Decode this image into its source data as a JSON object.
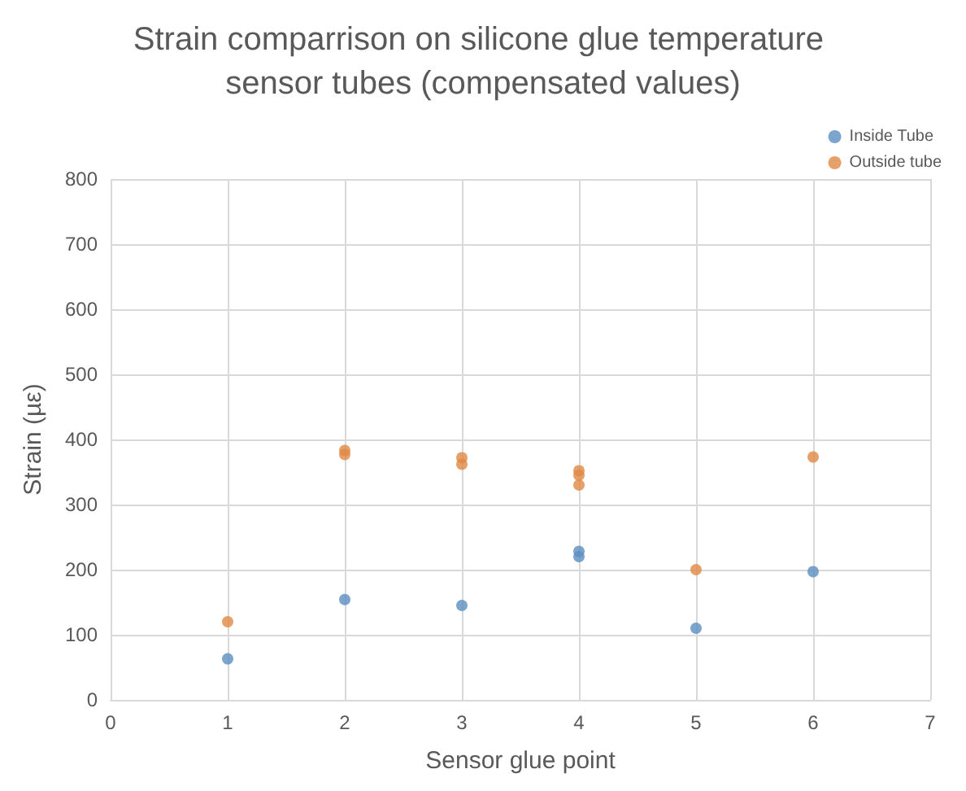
{
  "chart_data": {
    "type": "scatter",
    "title": "Strain comparrison on silicone glue temperature sensor tubes (compensated values)",
    "xlabel": "Sensor glue point",
    "ylabel": "Strain (µε)",
    "series": [
      {
        "name": "Inside Tube",
        "color": "#5b8fc2",
        "x": [
          1,
          2,
          3,
          4,
          4,
          5,
          6
        ],
        "values": [
          63,
          154,
          145,
          228,
          220,
          110,
          197
        ]
      },
      {
        "name": "Outside tube",
        "color": "#e08a46",
        "x": [
          1,
          2,
          2,
          3,
          3,
          4,
          4,
          4,
          5,
          6
        ],
        "values": [
          120,
          383,
          377,
          372,
          362,
          352,
          345,
          330,
          200,
          373
        ]
      }
    ],
    "xlim": [
      0,
      7
    ],
    "xticks": [
      0,
      1,
      2,
      3,
      4,
      5,
      6,
      7
    ],
    "ylim": [
      0,
      800
    ],
    "yticks": [
      0,
      100,
      200,
      300,
      400,
      500,
      600,
      700,
      800
    ],
    "grid": true,
    "legend": "top right",
    "marker": "circle"
  }
}
